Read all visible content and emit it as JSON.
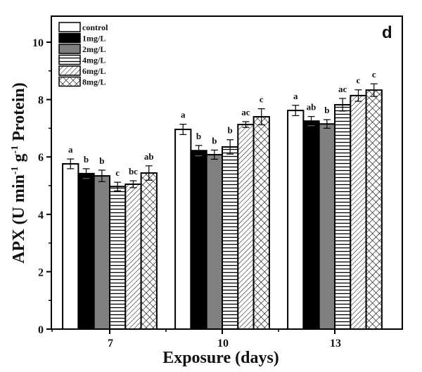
{
  "chart_data": {
    "type": "bar",
    "title": "",
    "panel_label": "d",
    "xlabel": "Exposure (days)",
    "ylabel": "APX (U min-1 g-1 Protein)",
    "ylabel_parts": {
      "pre": "APX (U min",
      "sup1": "-1",
      "mid": " g",
      "sup2": "-1",
      "post": " Protein)"
    },
    "ylim": [
      0,
      11
    ],
    "yticks": [
      0,
      2,
      4,
      6,
      8,
      10
    ],
    "yminor_ticks": [
      1,
      3,
      5,
      7,
      9
    ],
    "categories": [
      "7",
      "10",
      "13"
    ],
    "legend_position": "top-left",
    "grid": false,
    "series": [
      {
        "name": "control",
        "fill": "white",
        "values": [
          5.76,
          6.96,
          7.62
        ],
        "errors": [
          0.17,
          0.18,
          0.18
        ],
        "labels": [
          "a",
          "a",
          "a"
        ]
      },
      {
        "name": "1mg/L",
        "fill": "black",
        "values": [
          5.42,
          6.22,
          7.25
        ],
        "errors": [
          0.17,
          0.18,
          0.16
        ],
        "labels": [
          "b",
          "b",
          "ab"
        ]
      },
      {
        "name": "2mg/L",
        "fill": "gray",
        "values": [
          5.34,
          6.08,
          7.15
        ],
        "errors": [
          0.2,
          0.16,
          0.15
        ],
        "labels": [
          "b",
          "b",
          "b"
        ]
      },
      {
        "name": "4mg/L",
        "fill": "hlines",
        "values": [
          4.97,
          6.35,
          7.82
        ],
        "errors": [
          0.15,
          0.25,
          0.22
        ],
        "labels": [
          "c",
          "b",
          "ac"
        ]
      },
      {
        "name": "6mg/L",
        "fill": "diag",
        "values": [
          5.05,
          7.13,
          8.14
        ],
        "errors": [
          0.12,
          0.1,
          0.2
        ],
        "labels": [
          "bc",
          "ac",
          "c"
        ]
      },
      {
        "name": "8mg/L",
        "fill": "cross",
        "values": [
          5.44,
          7.4,
          8.33
        ],
        "errors": [
          0.25,
          0.28,
          0.22
        ],
        "labels": [
          "ab",
          "c",
          "c"
        ]
      }
    ],
    "colors": {
      "black": "#000000",
      "gray": "#808080",
      "white": "#ffffff"
    }
  }
}
